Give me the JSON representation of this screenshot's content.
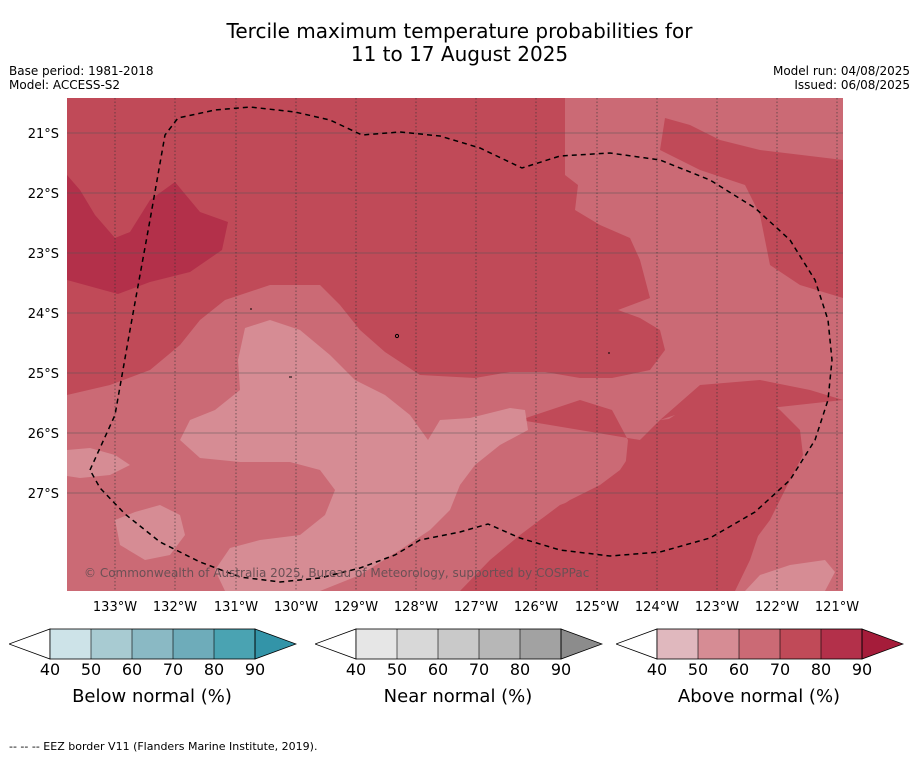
{
  "title_line1": "Tercile maximum temperature probabilities for",
  "title_line2": "11 to 17 August 2025",
  "meta_left": [
    "Base period: 1981-2018",
    "Model: ACCESS-S2"
  ],
  "meta_right": [
    "Model run: 04/08/2025",
    "Issued: 06/08/2025"
  ],
  "map": {
    "lat_labels": [
      "21°S",
      "22°S",
      "23°S",
      "24°S",
      "25°S",
      "26°S",
      "27°S"
    ],
    "lon_labels": [
      "133°W",
      "132°W",
      "131°W",
      "130°W",
      "129°W",
      "128°W",
      "127°W",
      "126°W",
      "125°W",
      "124°W",
      "123°W",
      "122°W",
      "121°W"
    ],
    "copyright": "© Commonwealth of Australia 2025, Bureau of Meteorology, supported by COSPPac",
    "colors": {
      "above_40": "#e0b8be",
      "above_50": "#d68c94",
      "above_60": "#cb6a75",
      "above_70": "#c04a58",
      "above_80": "#b3304a",
      "above_90": "#a51c3a"
    }
  },
  "colorbars": [
    {
      "label": "Below normal (%)",
      "ticks": [
        "40",
        "50",
        "60",
        "70",
        "80",
        "90"
      ],
      "colors": [
        "#cde3e8",
        "#a8cbd2",
        "#8ab9c4",
        "#6eacba",
        "#4aa3b2",
        "#3394a8"
      ]
    },
    {
      "label": "Near normal (%)",
      "ticks": [
        "40",
        "50",
        "60",
        "70",
        "80",
        "90"
      ],
      "colors": [
        "#e6e6e6",
        "#d8d8d8",
        "#c9c9c9",
        "#b7b7b7",
        "#a2a2a2",
        "#8c8c8c"
      ]
    },
    {
      "label": "Above normal (%)",
      "ticks": [
        "40",
        "50",
        "60",
        "70",
        "80",
        "90"
      ],
      "colors": [
        "#e0b8be",
        "#d68c94",
        "#cb6a75",
        "#c04a58",
        "#b3304a",
        "#a51c3a"
      ]
    }
  ],
  "footnote": "-- -- -- EEZ border V11 (Flanders Marine Institute, 2019)."
}
